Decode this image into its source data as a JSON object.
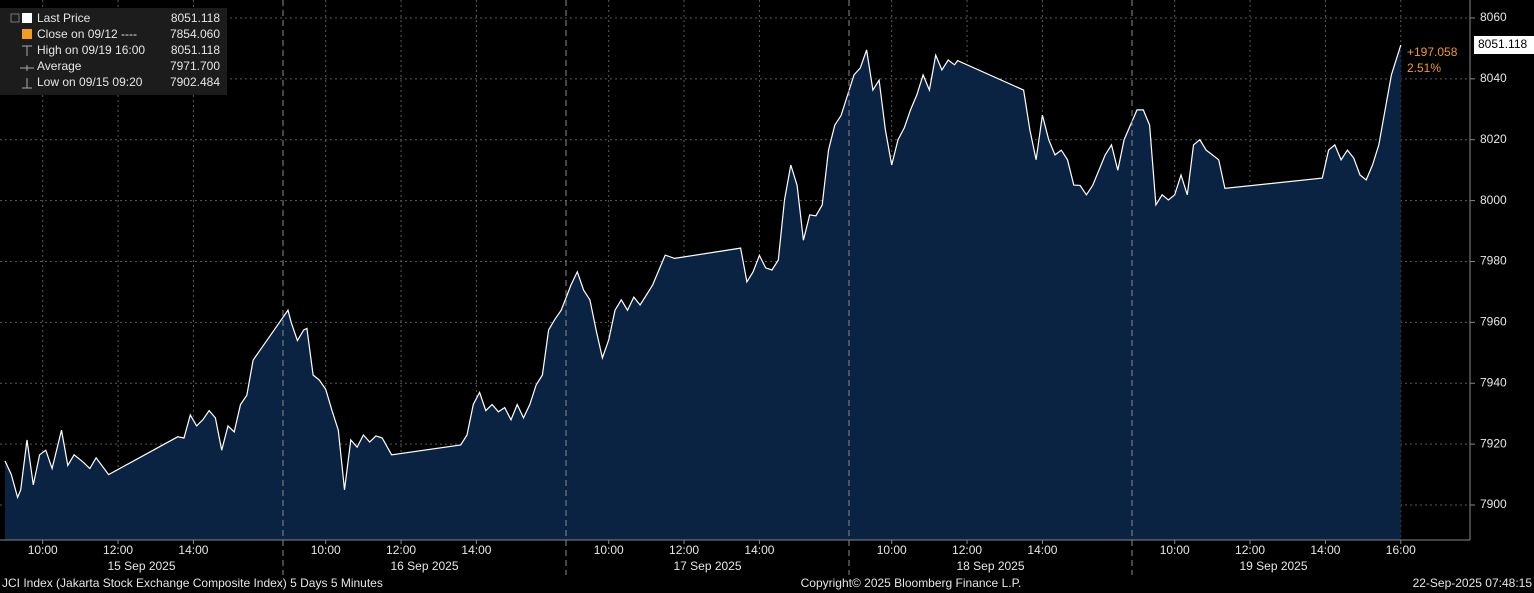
{
  "chart_data": {
    "type": "area",
    "legend": [
      {
        "label": "Last Price",
        "value": "8051.118"
      },
      {
        "label": "Close on 09/12 ----",
        "value": "7854.060"
      },
      {
        "label": "High on 09/19 16:00",
        "value": "8051.118"
      },
      {
        "label": "Average",
        "value": "7971.700"
      },
      {
        "label": "Low on 09/15 09:20",
        "value": "7902.484"
      }
    ],
    "last_price_label": "8051.118",
    "change_label": "+197.058",
    "change_pct_label": "2.51%",
    "footer_left": "JCI Index (Jakarta Stock Exchange Composite Index) 5 Days 5 Minutes",
    "footer_center": "Copyright© 2025 Bloomberg Finance L.P.",
    "footer_right": "22-Sep-2025 07:48:15",
    "color": "#ffffff",
    "fill": "#0b2342",
    "grid": true,
    "days": [
      {
        "value": "09/15",
        "label": "15 Sep 2025"
      },
      {
        "value": "09/16",
        "label": "16 Sep 2025"
      },
      {
        "value": "09/17",
        "label": "17 Sep 2025"
      },
      {
        "value": "09/18",
        "label": "18 Sep 2025"
      },
      {
        "value": "09/19",
        "label": "19 Sep 2025"
      }
    ],
    "xticks": [
      {
        "value": "09/15 10:00",
        "label": "10:00"
      },
      {
        "value": "09/15 12:00",
        "label": "12:00"
      },
      {
        "value": "09/15 14:00",
        "label": "14:00"
      },
      {
        "value": "09/16 10:00",
        "label": "10:00"
      },
      {
        "value": "09/16 12:00",
        "label": "12:00"
      },
      {
        "value": "09/16 14:00",
        "label": "14:00"
      },
      {
        "value": "09/17 10:00",
        "label": "10:00"
      },
      {
        "value": "09/17 12:00",
        "label": "12:00"
      },
      {
        "value": "09/17 14:00",
        "label": "14:00"
      },
      {
        "value": "09/18 10:00",
        "label": "10:00"
      },
      {
        "value": "09/18 12:00",
        "label": "12:00"
      },
      {
        "value": "09/18 14:00",
        "label": "14:00"
      },
      {
        "value": "09/19 10:00",
        "label": "10:00"
      },
      {
        "value": "09/19 12:00",
        "label": "12:00"
      },
      {
        "value": "09/19 14:00",
        "label": "14:00"
      },
      {
        "value": "09/19 16:00",
        "label": "16:00"
      }
    ],
    "ylim": [
      7888.5,
      8065.9
    ],
    "yticks": [
      7900,
      7920,
      7940,
      7960,
      7980,
      8000,
      8020,
      8040,
      8060
    ],
    "x": [
      "09/15 09:00",
      "09/15 09:10",
      "09/15 09:20",
      "09/15 09:25",
      "09/15 09:35",
      "09/15 09:45",
      "09/15 09:55",
      "09/15 10:05",
      "09/15 10:15",
      "09/15 10:30",
      "09/15 10:40",
      "09/15 10:50",
      "09/15 11:05",
      "09/15 11:15",
      "09/15 11:25",
      "09/15 11:45",
      "09/15 13:35",
      "09/15 13:45",
      "09/15 13:55",
      "09/15 14:05",
      "09/15 14:15",
      "09/15 14:25",
      "09/15 14:35",
      "09/15 14:45",
      "09/15 14:55",
      "09/15 15:05",
      "09/15 15:15",
      "09/15 15:25",
      "09/15 15:35",
      "09/15 15:50",
      "09/16 09:00",
      "09/16 09:05",
      "09/16 09:15",
      "09/16 09:25",
      "09/16 09:30",
      "09/16 09:40",
      "09/16 09:50",
      "09/16 10:00",
      "09/16 10:10",
      "09/16 10:20",
      "09/16 10:30",
      "09/16 10:40",
      "09/16 10:50",
      "09/16 11:00",
      "09/16 11:10",
      "09/16 11:20",
      "09/16 11:30",
      "09/16 11:45",
      "09/16 13:35",
      "09/16 13:45",
      "09/16 13:55",
      "09/16 14:05",
      "09/16 14:15",
      "09/16 14:25",
      "09/16 14:35",
      "09/16 14:45",
      "09/16 14:55",
      "09/16 15:05",
      "09/16 15:15",
      "09/16 15:25",
      "09/16 15:35",
      "09/16 15:45",
      "09/16 15:55",
      "09/16 16:05",
      "09/16 16:15",
      "09/17 09:00",
      "09/17 09:10",
      "09/17 09:20",
      "09/17 09:30",
      "09/17 09:40",
      "09/17 09:50",
      "09/17 10:00",
      "09/17 10:10",
      "09/17 10:20",
      "09/17 10:30",
      "09/17 10:40",
      "09/17 10:50",
      "09/17 11:00",
      "09/17 11:10",
      "09/17 11:20",
      "09/17 11:30",
      "09/17 11:45",
      "09/17 13:30",
      "09/17 13:40",
      "09/17 13:50",
      "09/17 14:00",
      "09/17 14:10",
      "09/17 14:20",
      "09/17 14:30",
      "09/17 14:40",
      "09/17 14:50",
      "09/17 15:00",
      "09/17 15:10",
      "09/17 15:20",
      "09/17 15:30",
      "09/17 15:40",
      "09/17 15:50",
      "09/17 16:00",
      "09/17 16:10",
      "09/18 09:00",
      "09/18 09:10",
      "09/18 09:20",
      "09/18 09:30",
      "09/18 09:40",
      "09/18 09:50",
      "09/18 10:00",
      "09/18 10:10",
      "09/18 10:20",
      "09/18 10:30",
      "09/18 10:40",
      "09/18 10:50",
      "09/18 11:00",
      "09/18 11:10",
      "09/18 11:20",
      "09/18 11:30",
      "09/18 11:40",
      "09/18 11:45",
      "09/18 13:30",
      "09/18 13:40",
      "09/18 13:50",
      "09/18 14:00",
      "09/18 14:10",
      "09/18 14:20",
      "09/18 14:30",
      "09/18 14:40",
      "09/18 14:50",
      "09/18 15:00",
      "09/18 15:10",
      "09/18 15:20",
      "09/18 15:30",
      "09/18 15:40",
      "09/18 15:50",
      "09/18 16:00",
      "09/18 16:10",
      "09/19 09:00",
      "09/19 09:10",
      "09/19 09:20",
      "09/19 09:30",
      "09/19 09:40",
      "09/19 09:50",
      "09/19 10:00",
      "09/19 10:10",
      "09/19 10:20",
      "09/19 10:30",
      "09/19 10:40",
      "09/19 10:50",
      "09/19 11:00",
      "09/19 11:10",
      "09/19 11:20",
      "09/19 13:55",
      "09/19 14:05",
      "09/19 14:15",
      "09/19 14:25",
      "09/19 14:35",
      "09/19 14:45",
      "09/19 14:55",
      "09/19 15:05",
      "09/19 15:15",
      "09/19 15:25",
      "09/19 15:35",
      "09/19 15:45",
      "09/19 16:00"
    ],
    "values": [
      7914.5,
      7910,
      7902.484,
      7905,
      7921.4,
      7906.6,
      7916.5,
      7918,
      7912,
      7924.6,
      7913,
      7916.5,
      7914,
      7912,
      7915.5,
      7910,
      7922.4,
      7922,
      7929.6,
      7926,
      7928,
      7931,
      7928.6,
      7918,
      7926,
      7924,
      7933,
      7936,
      7947.6,
      7952,
      7964,
      7960,
      7954,
      7957.5,
      7958,
      7942.7,
      7941,
      7938,
      7931,
      7924.6,
      7905,
      7921.4,
      7919,
      7923,
      7920.7,
      7922.7,
      7922,
      7916.5,
      7919.7,
      7923,
      7933,
      7937,
      7931,
      7933,
      7930.6,
      7932,
      7928,
      7933,
      7928.6,
      7933,
      7939.4,
      7942.7,
      7957.5,
      7961,
      7964,
      7972.3,
      7976.6,
      7970.6,
      7967.4,
      7957.5,
      7948.3,
      7954.2,
      7964,
      7967.4,
      7964,
      7968.3,
      7965.7,
      7969,
      7972.3,
      7977.2,
      7982.1,
      7981,
      7984.4,
      7973.3,
      7976.6,
      7982,
      7977.9,
      7977.2,
      7980.5,
      8000.2,
      8011.7,
      8005,
      7987,
      7995.3,
      7995,
      7998.6,
      8016.6,
      8024.8,
      8028,
      8041.3,
      8043.6,
      8049.5,
      8036.3,
      8039.6,
      8023.2,
      8011.7,
      8020,
      8023.9,
      8029.8,
      8034.7,
      8041.3,
      8036.3,
      8047.8,
      8042.9,
      8046.2,
      8044.6,
      8046,
      8036.3,
      8023.2,
      8013.4,
      8028.1,
      8020,
      8015,
      8016.6,
      8013.4,
      8005.1,
      8005,
      8001.9,
      8005,
      8010,
      8015,
      8018.3,
      8010,
      8020,
      8029.8,
      8029.8,
      8024.8,
      7998.6,
      8001.9,
      8000.2,
      8001.9,
      8008.4,
      8001.9,
      8018.3,
      8020,
      8016.6,
      8015,
      8013.4,
      8004,
      8007.4,
      8016.6,
      8018.3,
      8013.4,
      8016.6,
      8014,
      8008.4,
      8006.8,
      8011.7,
      8018.3,
      8029.8,
      8041.3,
      8051.118
    ]
  }
}
